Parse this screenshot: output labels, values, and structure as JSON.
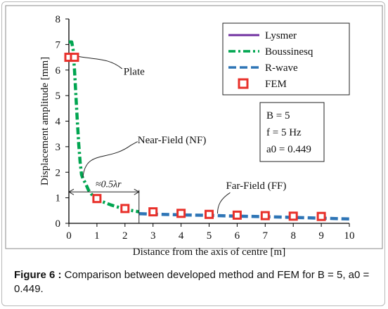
{
  "chart_data": {
    "type": "line",
    "xlabel": "Distance from the axis of centre [m]",
    "ylabel": "Displacement amplitude [mm]",
    "xlim": [
      0,
      10
    ],
    "ylim": [
      0,
      8
    ],
    "xticks": [
      "0",
      "1",
      "2",
      "3",
      "4",
      "5",
      "6",
      "7",
      "8",
      "9",
      "10"
    ],
    "yticks": [
      "0",
      "1",
      "2",
      "3",
      "4",
      "5",
      "6",
      "7",
      "8"
    ],
    "grid": false,
    "legend_position": "top-right",
    "series": [
      {
        "name": "Lysmer",
        "style": "solid",
        "color": "#7030a0",
        "x": [
          0,
          0.12
        ],
        "y": [
          7.08,
          7.08
        ]
      },
      {
        "name": "Boussinesq",
        "style": "dash-dot",
        "color": "#00a550",
        "x": [
          0,
          0.1,
          0.15,
          0.2,
          0.25,
          0.3,
          0.35,
          0.4,
          0.45,
          0.5,
          0.6,
          0.7,
          0.8,
          1.0,
          1.5,
          2.0,
          2.5
        ],
        "y": [
          7.1,
          7.1,
          6.8,
          6.0,
          5.0,
          4.0,
          3.1,
          2.4,
          1.9,
          1.75,
          1.55,
          1.3,
          1.15,
          0.93,
          0.72,
          0.55,
          0.45
        ]
      },
      {
        "name": "R-wave",
        "style": "dashed",
        "color": "#2e75b6",
        "x": [
          2.5,
          3,
          4,
          5,
          6,
          7,
          8,
          9,
          10
        ],
        "y": [
          0.38,
          0.36,
          0.33,
          0.31,
          0.28,
          0.26,
          0.23,
          0.2,
          0.17
        ]
      },
      {
        "name": "FEM",
        "style": "marker",
        "color": "#e8302a",
        "x": [
          0,
          0.2,
          1,
          2,
          3,
          4,
          5,
          6,
          7,
          8,
          9
        ],
        "y": [
          6.5,
          6.5,
          0.97,
          0.58,
          0.45,
          0.39,
          0.35,
          0.32,
          0.3,
          0.28,
          0.27
        ]
      }
    ],
    "parameters_box": [
      "B = 5",
      "f = 5 Hz",
      "a0 = 0.449"
    ],
    "annotations": {
      "plate": "Plate",
      "near_field": "Near-Field (NF)",
      "far_field": "Far-Field (FF)",
      "span": "≈0.5λr"
    }
  },
  "caption": {
    "label": "Figure 6 :",
    "text": " Comparison between developed method and FEM for B = 5, a0 = 0.449."
  },
  "colors": {
    "lysmer": "#7030a0",
    "boussinesq": "#00a550",
    "rwave": "#2e75b6",
    "fem": "#e8302a"
  }
}
